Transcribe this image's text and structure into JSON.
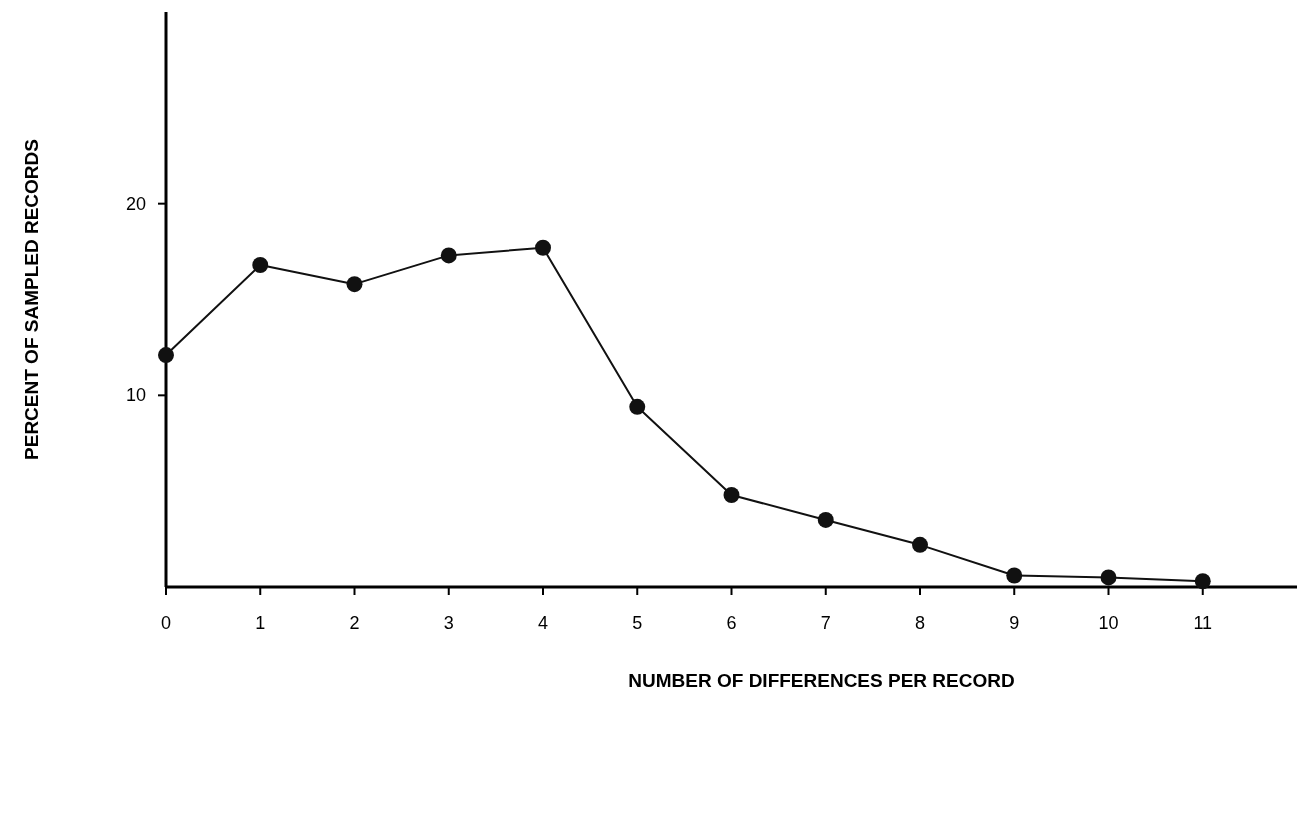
{
  "chart_data": {
    "type": "line",
    "xlabel": "NUMBER OF DIFFERENCES PER RECORD",
    "ylabel": "PERCENT OF SAMPLED RECORDS",
    "x": [
      0,
      1,
      2,
      3,
      4,
      5,
      6,
      7,
      8,
      9,
      10,
      11
    ],
    "series": [
      {
        "color": "#111111",
        "values": [
          12.1,
          16.8,
          15.8,
          17.3,
          17.7,
          9.4,
          4.8,
          3.5,
          2.2,
          0.6,
          0.5,
          0.3
        ]
      }
    ],
    "xlim": [
      0,
      12
    ],
    "xticks": [
      0,
      1,
      2,
      3,
      4,
      5,
      6,
      7,
      8,
      9,
      10,
      11
    ],
    "ylim": [
      0,
      30
    ],
    "yticks": [
      10,
      20
    ],
    "marker": "circle",
    "line_style": "solid",
    "grid": false
  }
}
